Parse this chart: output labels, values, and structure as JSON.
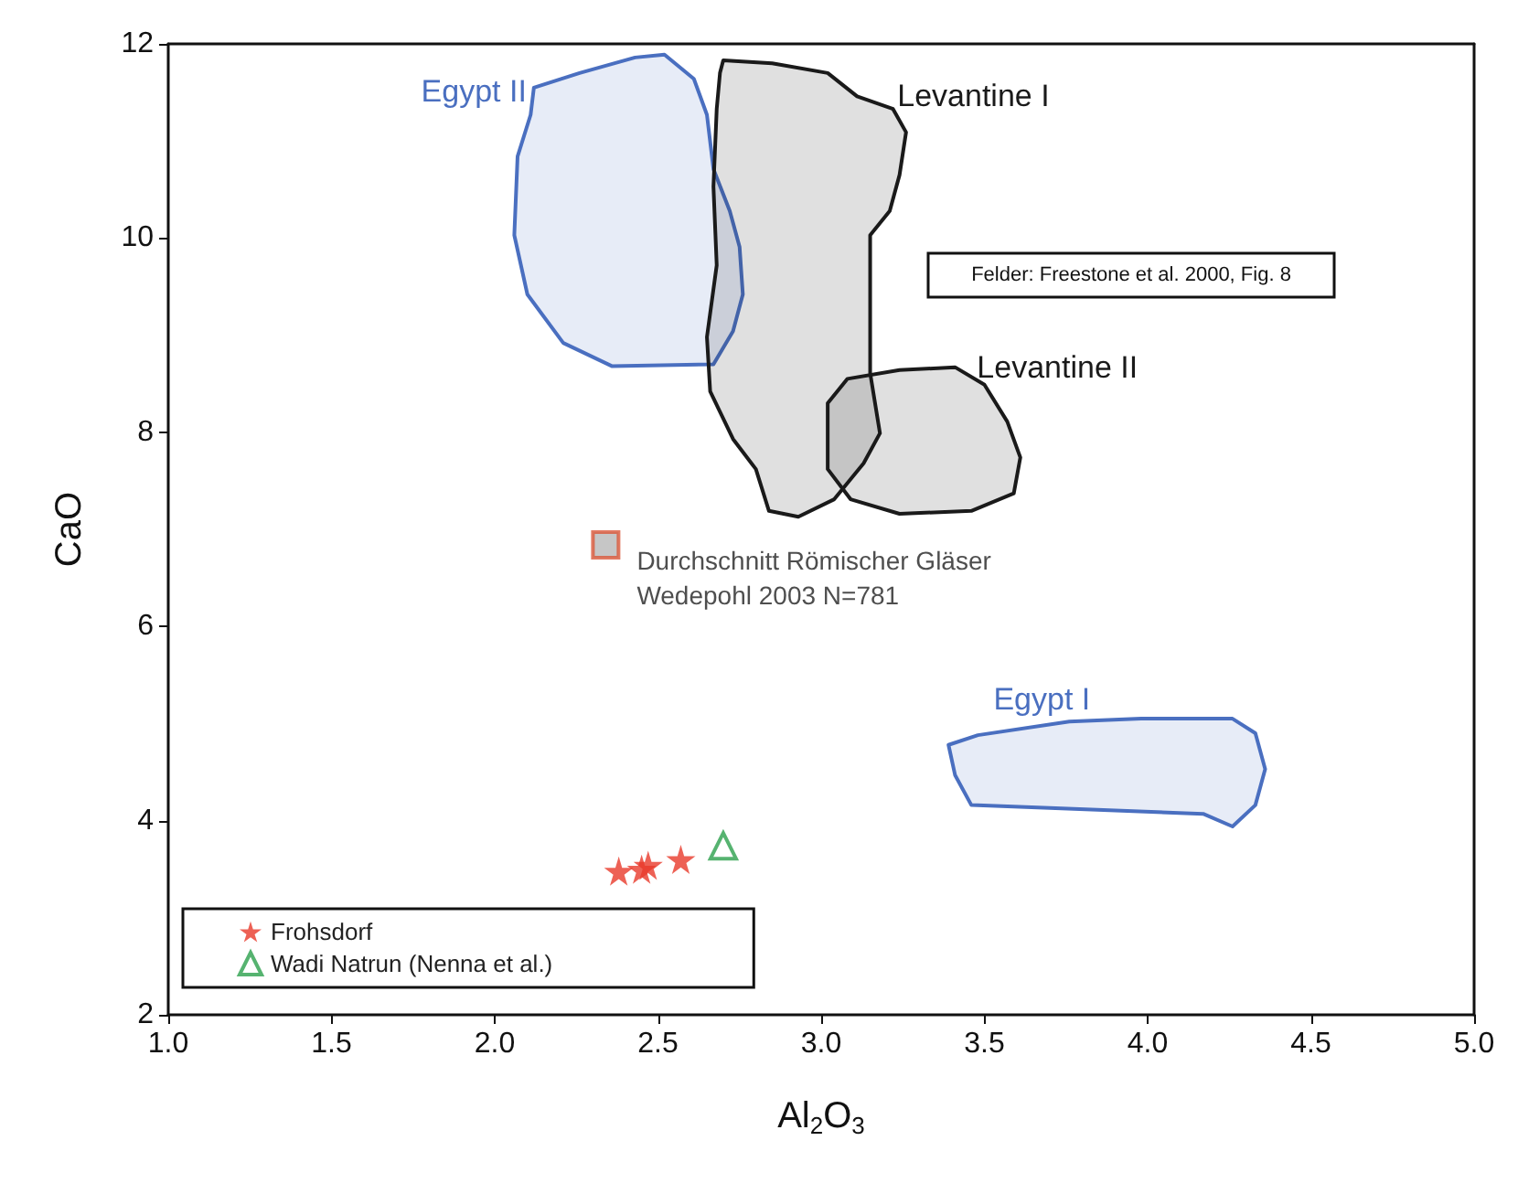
{
  "chart_data": {
    "type": "scatter",
    "xlabel": "Al$_{2}$O$_{3}$",
    "ylabel": "CaO",
    "xlim": [
      1,
      5
    ],
    "xticks": [
      {
        "value": 1,
        "label": "1.0"
      },
      {
        "value": 1.5,
        "label": "1.5"
      },
      {
        "value": 2,
        "label": "2.0"
      },
      {
        "value": 2.5,
        "label": "2.5"
      },
      {
        "value": 3,
        "label": "3.0"
      },
      {
        "value": 3.5,
        "label": "3.5"
      },
      {
        "value": 4,
        "label": "4.0"
      },
      {
        "value": 4.5,
        "label": "4.5"
      },
      {
        "value": 5,
        "label": "5.0"
      }
    ],
    "ylim": [
      2,
      12
    ],
    "yticks": [
      2,
      4,
      6,
      8,
      10,
      12
    ],
    "grid": false,
    "legend": "bottom left",
    "series": [
      {
        "name": "Egypt II",
        "type": "area",
        "color": "#4a6fc0",
        "x": [
          2.12,
          2.26,
          2.43,
          2.52,
          2.61,
          2.65,
          2.67,
          2.72,
          2.75,
          2.76,
          2.73,
          2.67,
          2.36,
          2.21,
          2.1,
          2.06,
          2.07,
          2.11,
          2.12
        ],
        "values": [
          11.55,
          11.7,
          11.86,
          11.89,
          11.64,
          11.27,
          10.71,
          10.28,
          9.91,
          9.42,
          9.04,
          8.7,
          8.68,
          8.92,
          9.42,
          10.03,
          10.84,
          11.27,
          11.55
        ]
      },
      {
        "name": "Levantine I",
        "type": "area",
        "color": "#1a1a1a",
        "x": [
          2.7,
          2.85,
          3.02,
          3.11,
          3.22,
          3.26,
          3.24,
          3.21,
          3.15,
          3.15,
          3.18,
          3.13,
          3.04,
          2.93,
          2.84,
          2.8,
          2.73,
          2.66,
          2.65,
          2.68,
          2.67,
          2.68,
          2.69,
          2.7
        ],
        "values": [
          11.83,
          11.8,
          11.7,
          11.46,
          11.33,
          11.09,
          10.65,
          10.28,
          10.03,
          8.61,
          7.99,
          7.68,
          7.31,
          7.13,
          7.19,
          7.62,
          7.93,
          8.42,
          8.98,
          9.72,
          10.53,
          11.33,
          11.7,
          11.83
        ]
      },
      {
        "name": "Levantine II",
        "type": "area",
        "color": "#1a1a1a",
        "x": [
          3.02,
          3.08,
          3.24,
          3.41,
          3.5,
          3.57,
          3.61,
          3.59,
          3.46,
          3.24,
          3.09,
          3.02,
          3.02
        ],
        "values": [
          8.3,
          8.55,
          8.64,
          8.67,
          8.49,
          8.11,
          7.74,
          7.37,
          7.19,
          7.16,
          7.31,
          7.62,
          8.3
        ]
      },
      {
        "name": "Egypt I",
        "type": "area",
        "color": "#4a6fc0",
        "x": [
          3.39,
          3.48,
          3.76,
          3.98,
          4.26,
          4.33,
          4.36,
          4.33,
          4.26,
          4.17,
          3.7,
          3.46,
          3.41,
          3.39
        ],
        "values": [
          4.78,
          4.88,
          5.02,
          5.05,
          5.05,
          4.9,
          4.53,
          4.16,
          3.94,
          4.07,
          4.13,
          4.16,
          4.47,
          4.78
        ]
      },
      {
        "marker": "square",
        "color": "#b8b8b8",
        "x": [
          2.34
        ],
        "values": [
          6.84
        ]
      },
      {
        "name": "Frohsdorf",
        "marker": "star",
        "color": "#e8392b",
        "x": [
          2.38,
          2.45,
          2.47,
          2.57
        ],
        "values": [
          3.48,
          3.5,
          3.54,
          3.6
        ]
      },
      {
        "name": "Wadi Natrun (Nenna et al.)",
        "marker": "triangle",
        "color": "#2ca04c",
        "x": [
          2.7
        ],
        "values": [
          3.74
        ]
      }
    ],
    "annotations": [
      {
        "text": "Durchschnitt Römischer Gläser\nWedepohl 2003 N=781",
        "x": 2.34,
        "y": 6.84
      },
      "Felder: Freestone et al. 2000, Fig. 8"
    ]
  }
}
